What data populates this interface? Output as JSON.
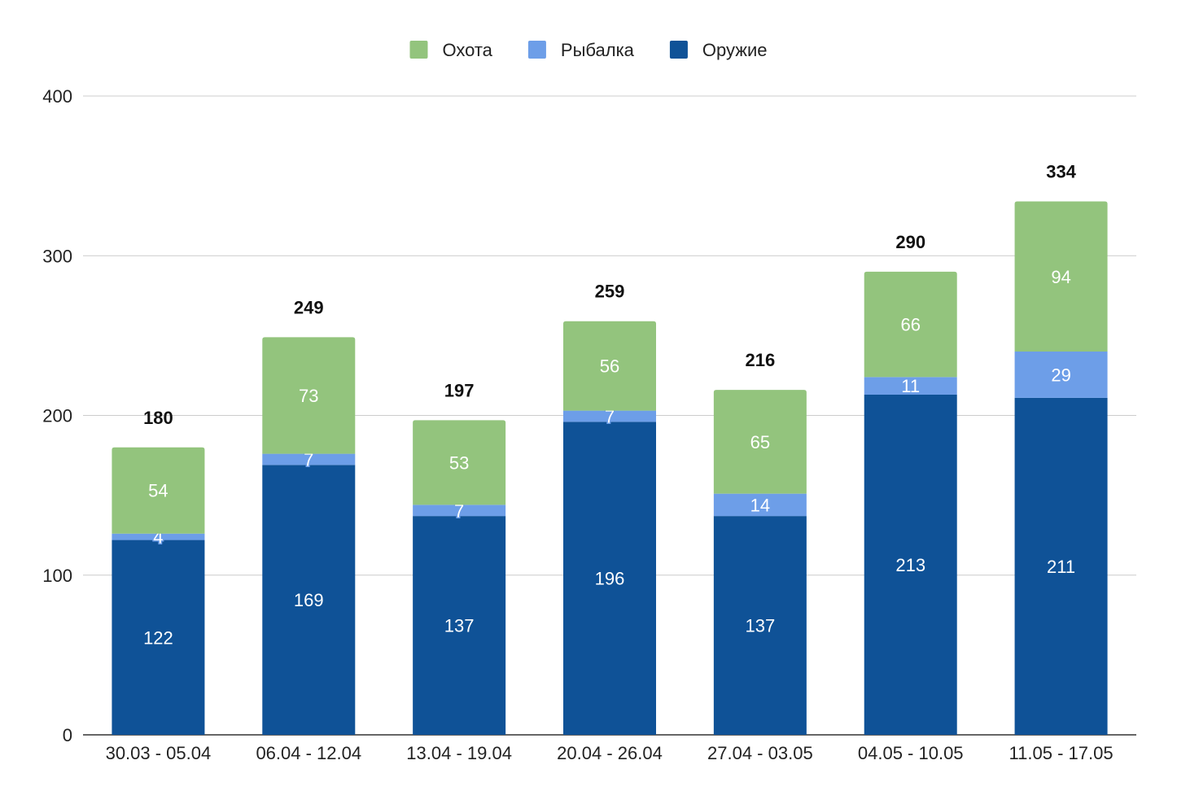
{
  "chart_data": {
    "type": "bar",
    "stacked": true,
    "categories": [
      "30.03 - 05.04",
      "06.04 - 12.04",
      "13.04 - 19.04",
      "20.04 - 26.04",
      "27.04 - 03.05",
      "04.05 - 10.05",
      "11.05 - 17.05"
    ],
    "series": [
      {
        "name": "Оружие",
        "color": "#0f5297",
        "values": [
          122,
          169,
          137,
          196,
          137,
          213,
          211
        ]
      },
      {
        "name": "Рыбалка",
        "color": "#6d9ee8",
        "values": [
          4,
          7,
          7,
          7,
          14,
          11,
          29
        ]
      },
      {
        "name": "Охота",
        "color": "#93c47d",
        "values": [
          54,
          73,
          53,
          56,
          65,
          66,
          94
        ]
      }
    ],
    "totals": [
      180,
      249,
      197,
      259,
      216,
      290,
      334
    ],
    "legend_order": [
      "Охота",
      "Рыбалка",
      "Оружие"
    ],
    "legend_position": "top",
    "ylim": [
      0,
      400
    ],
    "yticks": [
      0,
      100,
      200,
      300,
      400
    ],
    "grid": true,
    "title": "",
    "xlabel": "",
    "ylabel": ""
  }
}
